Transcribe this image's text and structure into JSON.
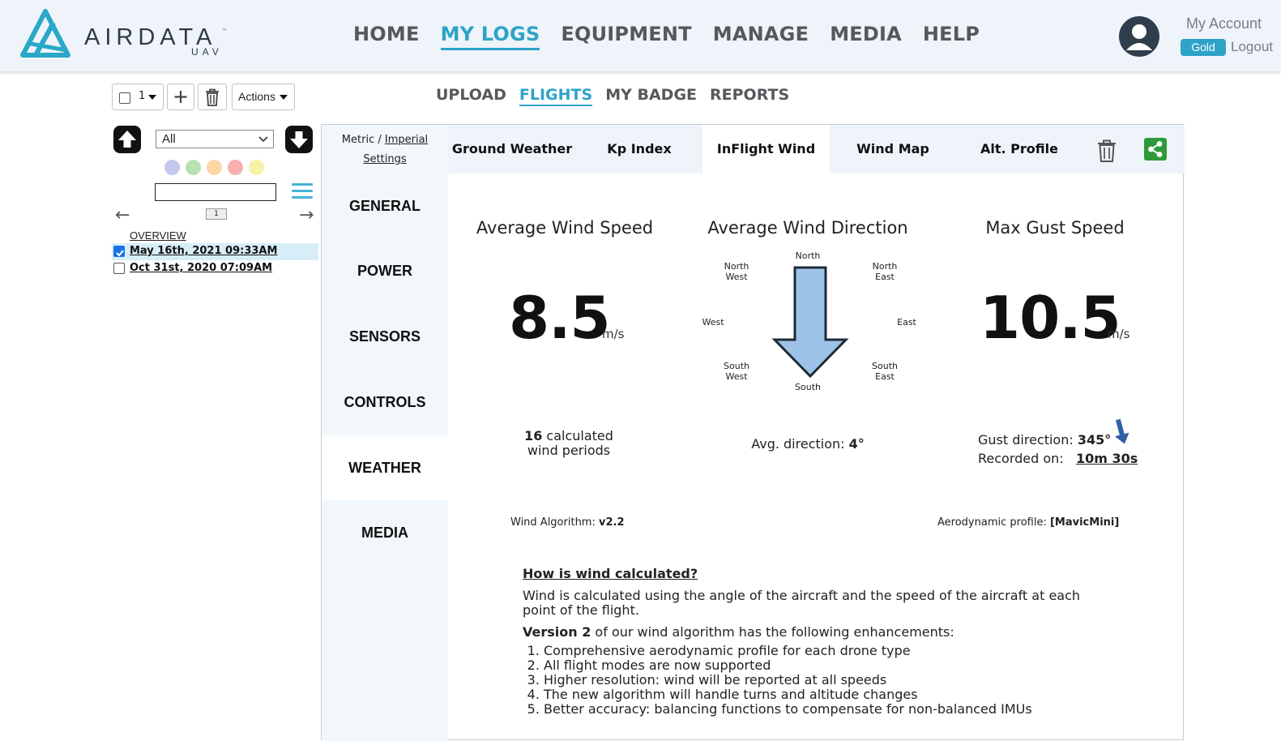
{
  "brand": {
    "name": "AIRDATA",
    "sub": "UAV",
    "tm": "™"
  },
  "nav": {
    "items": [
      "HOME",
      "MY LOGS",
      "EQUIPMENT",
      "MANAGE",
      "MEDIA",
      "HELP"
    ],
    "active": "MY LOGS"
  },
  "account": {
    "label": "My Account",
    "tier": "Gold",
    "logout": "Logout"
  },
  "toolbar": {
    "count": "1",
    "actions_label": "Actions"
  },
  "subnav": {
    "items": [
      "UPLOAD",
      "FLIGHTS",
      "MY BADGE",
      "REPORTS"
    ],
    "active": "FLIGHTS"
  },
  "sidebar": {
    "filter_value": "All",
    "color_dots": [
      "#c4c8ee",
      "#b9e2b4",
      "#fcd6a4",
      "#f7b0ae",
      "#f8f2a5"
    ],
    "page_number": "1",
    "overview_label": "OVERVIEW",
    "flights": [
      {
        "label": "May 16th, 2021 09:33AM",
        "checked": true
      },
      {
        "label": "Oct 31st, 2020 07:09AM",
        "checked": false
      }
    ]
  },
  "units": {
    "metric": "Metric",
    "separator": "/",
    "imperial": "Imperial",
    "settings": "Settings"
  },
  "side_menu": {
    "items": [
      "GENERAL",
      "POWER",
      "SENSORS",
      "CONTROLS",
      "WEATHER",
      "MEDIA"
    ],
    "active": "WEATHER"
  },
  "tabs": {
    "items": [
      "Ground Weather",
      "Kp Index",
      "InFlight Wind",
      "Wind Map",
      "Alt. Profile"
    ],
    "active": "InFlight Wind"
  },
  "wind": {
    "avg_speed_title": "Average Wind Speed",
    "avg_speed_value": "8.5",
    "avg_speed_unit": "m/s",
    "avg_dir_title": "Average Wind Direction",
    "max_gust_title": "Max Gust Speed",
    "max_gust_value": "10.5",
    "max_gust_unit": "m/s",
    "compass": {
      "n": "North",
      "ne_1": "North",
      "ne_2": "East",
      "e": "East",
      "se_1": "South",
      "se_2": "East",
      "s": "South",
      "sw_1": "South",
      "sw_2": "West",
      "w": "West",
      "nw_1": "North",
      "nw_2": "West"
    },
    "periods_count": "16",
    "periods_text_1": "calculated",
    "periods_text_2": "wind periods",
    "avg_direction_label": "Avg. direction:",
    "avg_direction_value": "4°",
    "gust_direction_label": "Gust direction:",
    "gust_direction_value": "345°",
    "recorded_label": "Recorded on:",
    "recorded_value": "10m 30s",
    "algorithm_label": "Wind Algorithm:",
    "algorithm_value": "v2.2",
    "profile_label": "Aerodynamic profile:",
    "profile_value": "[MavicMini]",
    "direction_arrow_color": "#9ec3e8",
    "gust_arrow_color": "#2f5fa3"
  },
  "howto": {
    "title": "How is wind calculated?",
    "intro": "Wind is calculated using the angle of the aircraft and the speed of the aircraft at each point of the flight.",
    "version_bold": "Version 2",
    "version_rest": " of our wind algorithm has the following enhancements:",
    "items": [
      "Comprehensive aerodynamic profile for each drone type",
      "All flight modes are now supported",
      "Higher resolution: wind will be reported at all speeds",
      "The new algorithm will handle turns and altitude changes",
      "Better accuracy: balancing functions to compensate for non-balanced IMUs"
    ]
  }
}
